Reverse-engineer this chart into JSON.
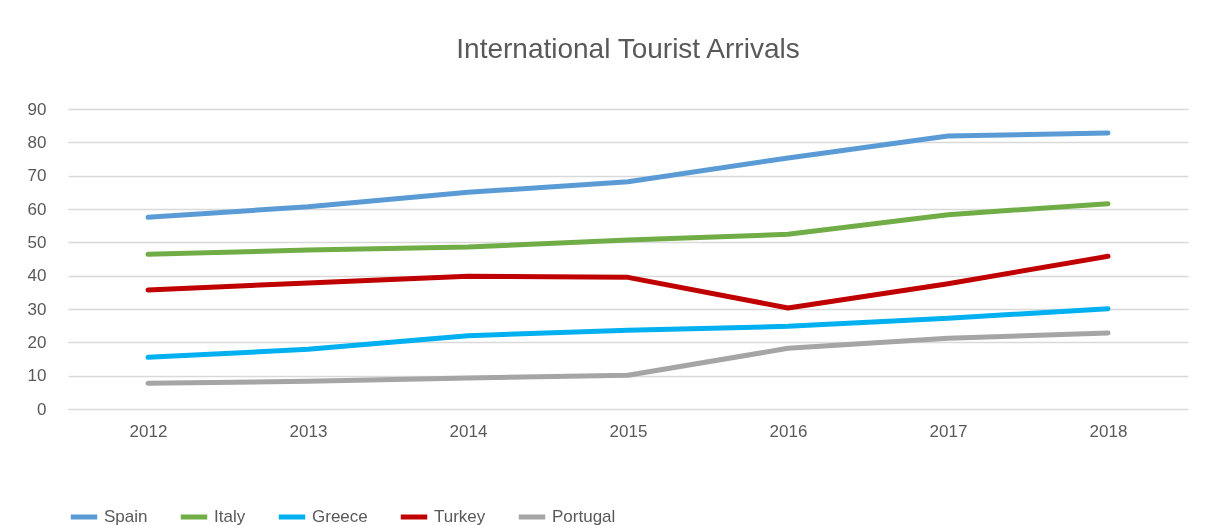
{
  "chart_data": {
    "type": "line",
    "title": "International Tourist Arrivals",
    "categories": [
      "2012",
      "2013",
      "2014",
      "2015",
      "2016",
      "2017",
      "2018"
    ],
    "series": [
      {
        "name": "Spain",
        "color": "#5b9bd5",
        "values": [
          57.5,
          60.7,
          65,
          68.2,
          75.3,
          81.9,
          82.8
        ]
      },
      {
        "name": "Italy",
        "color": "#70ad47",
        "values": [
          46.4,
          47.7,
          48.6,
          50.7,
          52.4,
          58.3,
          61.6
        ]
      },
      {
        "name": "Greece",
        "color": "#00b0f0",
        "values": [
          15.5,
          17.9,
          22,
          23.6,
          24.8,
          27.2,
          30.1
        ]
      },
      {
        "name": "Turkey",
        "color": "#c00000",
        "values": [
          35.7,
          37.8,
          39.8,
          39.5,
          30.3,
          37.6,
          45.8
        ]
      },
      {
        "name": "Portugal",
        "color": "#a5a5a5",
        "values": [
          7.7,
          8.3,
          9.3,
          10.1,
          18.2,
          21.2,
          22.8
        ]
      }
    ],
    "ylim": [
      0,
      90
    ],
    "yticks": [
      0,
      10,
      20,
      30,
      40,
      50,
      60,
      70,
      80,
      90
    ],
    "grid": "y",
    "legend": "bottom"
  }
}
